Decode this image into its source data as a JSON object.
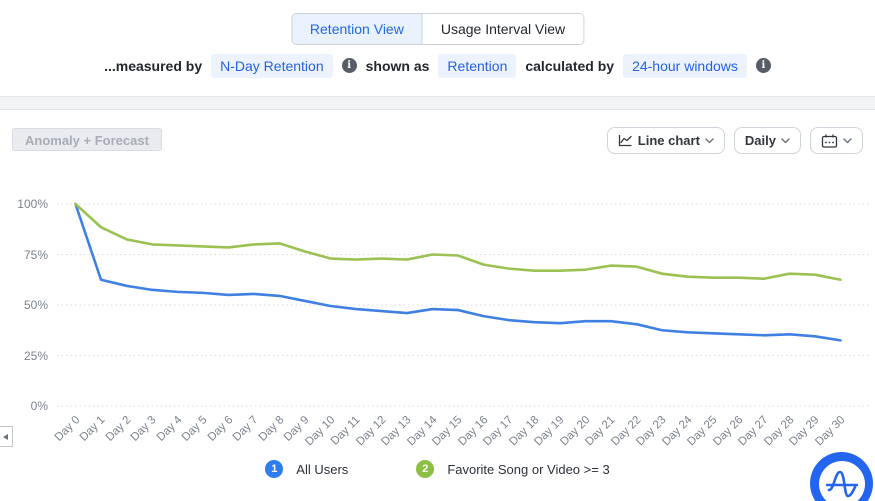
{
  "header": {
    "tabs": [
      {
        "label": "Retention View",
        "active": true
      },
      {
        "label": "Usage Interval View",
        "active": false
      }
    ],
    "meta": {
      "prefix": "...measured by",
      "measure_pill": "N-Day Retention",
      "shown_as_label": "shown as",
      "shown_as_pill": "Retention",
      "calculated_by_label": "calculated by",
      "calculated_by_pill": "24-hour windows"
    }
  },
  "toolbar": {
    "anomaly_forecast_label": "Anomaly + Forecast",
    "chart_type_label": "Line chart",
    "interval_label": "Daily"
  },
  "legend": [
    {
      "index": "1",
      "label": "All Users",
      "color": "#2e7ef0"
    },
    {
      "index": "2",
      "label": "Favorite Song or Video >= 3",
      "color": "#8dbf44"
    }
  ],
  "colors": {
    "accent_blue": "#2268e4",
    "pill_bg": "#edf3fd",
    "line_blue": "#3f80e2",
    "line_green": "#9cc153",
    "grid": "#d6d9de",
    "axis_text": "#7b828d",
    "logo_blue": "#2465ef"
  },
  "chart_data": {
    "type": "line",
    "title": "",
    "xlabel": "",
    "ylabel": "",
    "ylim": [
      0,
      100
    ],
    "grid": "dotted horizontal",
    "legend_position": "bottom",
    "x_labels": [
      "Day 0",
      "Day 1",
      "Day 2",
      "Day 3",
      "Day 4",
      "Day 5",
      "Day 6",
      "Day 7",
      "Day 8",
      "Day 9",
      "Day 10",
      "Day 11",
      "Day 12",
      "Day 13",
      "Day 14",
      "Day 15",
      "Day 16",
      "Day 17",
      "Day 18",
      "Day 19",
      "Day 20",
      "Day 21",
      "Day 22",
      "Day 23",
      "Day 24",
      "Day 25",
      "Day 26",
      "Day 27",
      "Day 28",
      "Day 29",
      "Day 30"
    ],
    "y_ticks": [
      {
        "label": "100%",
        "value": 100
      },
      {
        "label": "75%",
        "value": 75
      },
      {
        "label": "50%",
        "value": 50
      },
      {
        "label": "25%",
        "value": 25
      },
      {
        "label": "0%",
        "value": 0
      }
    ],
    "series": [
      {
        "name": "All Users",
        "color": "#3f80e2",
        "values": [
          100,
          62.5,
          59.5,
          57.5,
          56.5,
          56,
          55,
          55.5,
          54.5,
          52,
          49.5,
          48,
          47,
          46,
          48,
          47.5,
          44.5,
          42.5,
          41.5,
          41,
          42,
          42,
          40.5,
          37.5,
          36.5,
          36,
          35.5,
          35,
          35.5,
          34.5,
          32.5
        ]
      },
      {
        "name": "Favorite Song or Video >= 3",
        "color": "#9cc153",
        "values": [
          100,
          88.5,
          82.5,
          80,
          79.5,
          79,
          78.5,
          80,
          80.5,
          76.5,
          73,
          72.5,
          73,
          72.5,
          75,
          74.5,
          70,
          68,
          67,
          67,
          67.5,
          69.5,
          69,
          65.5,
          64,
          63.5,
          63.5,
          63,
          65.5,
          65,
          62.5
        ]
      }
    ]
  }
}
